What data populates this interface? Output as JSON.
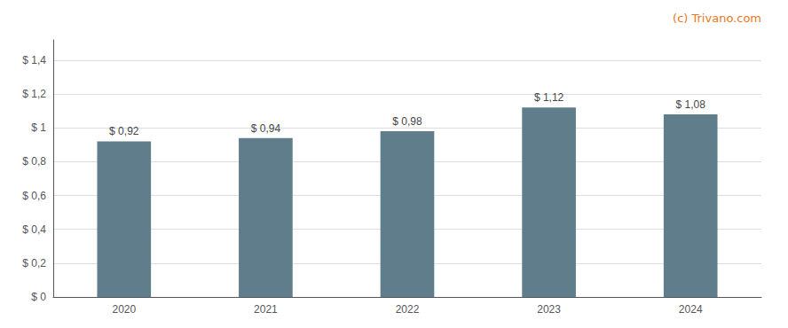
{
  "chart_data": {
    "type": "bar",
    "categories": [
      "2020",
      "2021",
      "2022",
      "2023",
      "2024"
    ],
    "values": [
      0.92,
      0.94,
      0.98,
      1.12,
      1.08
    ],
    "value_labels": [
      "$ 0,92",
      "$ 0,94",
      "$ 0,98",
      "$ 1,12",
      "$ 1,08"
    ],
    "data_labels": true,
    "color": "#607d8b",
    "ylim": [
      0,
      1.52
    ],
    "yticks": [
      {
        "value": 0,
        "label": "$ 0"
      },
      {
        "value": 0.2,
        "label": "$ 0,2"
      },
      {
        "value": 0.4,
        "label": "$ 0,4"
      },
      {
        "value": 0.6,
        "label": "$ 0,6"
      },
      {
        "value": 0.8,
        "label": "$ 0,8"
      },
      {
        "value": 1.0,
        "label": "$ 1"
      },
      {
        "value": 1.2,
        "label": "$ 1,2"
      },
      {
        "value": 1.4,
        "label": "$ 1,4"
      }
    ],
    "grid": true,
    "annotation": "(c) Trivano.com"
  }
}
